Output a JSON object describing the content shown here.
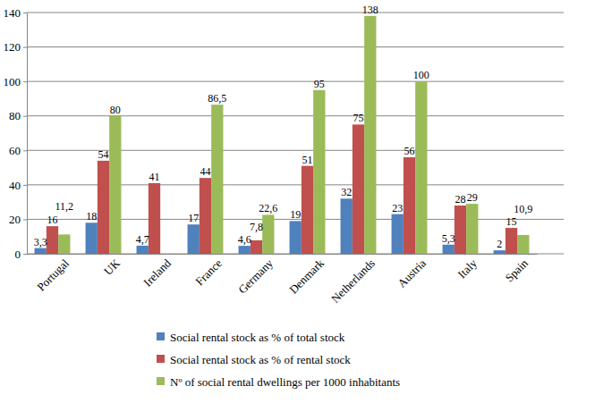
{
  "chart_data": {
    "type": "bar",
    "categories": [
      "Portugal",
      "UK",
      "Ireland",
      "France",
      "Germany",
      "Denmark",
      "Netherlands",
      "Austria",
      "Italy",
      "Spain"
    ],
    "series": [
      {
        "name": "Social rental stock as % of total stock",
        "color": "#4f81bd",
        "values": [
          3.3,
          18,
          4.7,
          17,
          4.6,
          19,
          32,
          23,
          5.3,
          2
        ],
        "value_labels": [
          "3,3",
          "18",
          "4,7",
          "17",
          "4,6",
          "19",
          "32",
          "23",
          "5,3",
          "2"
        ]
      },
      {
        "name": "Social rental stock as % of rental stock",
        "color": "#c0504d",
        "values": [
          16,
          54,
          41,
          44,
          7.8,
          51,
          75,
          56,
          28,
          15
        ],
        "value_labels": [
          "16",
          "54",
          "41",
          "44",
          "7,8",
          "51",
          "75",
          "56",
          "28",
          "15"
        ]
      },
      {
        "name": "Nº of social rental dwellings per 1000 inhabitants",
        "color": "#9bbb59",
        "values": [
          11.2,
          80,
          null,
          86.5,
          22.6,
          95,
          138,
          100,
          29,
          10.9
        ],
        "value_labels": [
          "11,2",
          "80",
          null,
          "86,5",
          "22,6",
          "95",
          "138",
          "100",
          "29",
          "10,9"
        ]
      }
    ],
    "ylim": [
      0,
      140
    ],
    "yticks": [
      0,
      20,
      40,
      60,
      80,
      100,
      120,
      140
    ],
    "grid": true,
    "data_labels": true,
    "legend": "bottom"
  }
}
